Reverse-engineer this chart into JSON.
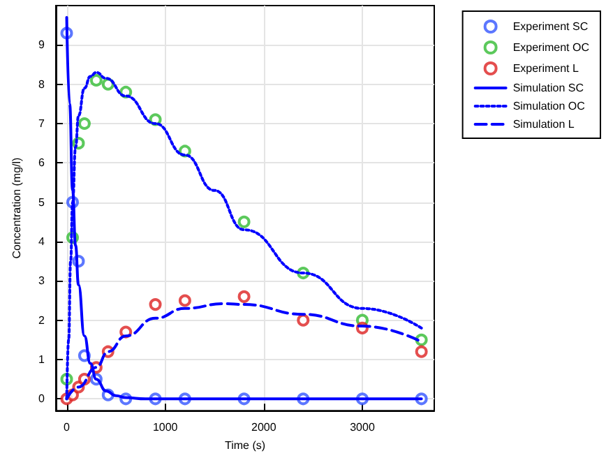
{
  "chart_data": {
    "type": "line",
    "xlabel": "Time (s)",
    "ylabel": "Concentration (mg/l)",
    "xlim": [
      -110,
      3730
    ],
    "ylim": [
      -0.3,
      10
    ],
    "xticks": [
      0,
      1000,
      2000,
      3000
    ],
    "yticks": [
      0,
      1,
      2,
      3,
      4,
      5,
      6,
      7,
      8,
      9
    ],
    "grid": true,
    "legend": "top right",
    "series": [
      {
        "name": "Experiment SC",
        "type": "scatter",
        "marker": "circle",
        "color": "#3355ff",
        "x": [
          0,
          60,
          120,
          180,
          300,
          420,
          600,
          900,
          1200,
          1800,
          2400,
          3000,
          3600
        ],
        "values": [
          9.3,
          5.0,
          3.5,
          1.1,
          0.5,
          0.1,
          0,
          0,
          0,
          0,
          0,
          0,
          0
        ]
      },
      {
        "name": "Experiment OC",
        "type": "scatter",
        "marker": "circle",
        "color": "#33bb33",
        "x": [
          0,
          60,
          120,
          180,
          300,
          420,
          600,
          900,
          1200,
          1800,
          2400,
          3000,
          3600
        ],
        "values": [
          0.5,
          4.1,
          6.5,
          7.0,
          8.1,
          8.0,
          7.8,
          7.1,
          6.3,
          4.5,
          3.2,
          2.0,
          1.5
        ]
      },
      {
        "name": "Experiment L",
        "type": "scatter",
        "marker": "circle",
        "color": "#dd2222",
        "x": [
          0,
          60,
          120,
          180,
          300,
          420,
          600,
          900,
          1200,
          1800,
          2400,
          3000,
          3600
        ],
        "values": [
          0,
          0.1,
          0.3,
          0.5,
          0.8,
          1.2,
          1.7,
          2.4,
          2.5,
          2.6,
          2.0,
          1.8,
          1.2
        ]
      },
      {
        "name": "Simulation SC",
        "type": "line",
        "marker": "none",
        "line_style": "solid",
        "color": "#0000ff",
        "x": [
          0,
          30,
          60,
          90,
          120,
          180,
          240,
          300,
          400,
          500,
          600,
          800,
          1200,
          2000,
          3000,
          3600
        ],
        "values": [
          9.7,
          7.5,
          5.3,
          3.9,
          2.9,
          1.6,
          0.9,
          0.5,
          0.2,
          0.08,
          0.03,
          0,
          0,
          0,
          0,
          0
        ]
      },
      {
        "name": "Simulation OC",
        "type": "line",
        "marker": "none",
        "line_style": "dotted",
        "color": "#0000ff",
        "x": [
          0,
          20,
          40,
          60,
          90,
          120,
          180,
          240,
          300,
          400,
          600,
          900,
          1200,
          1500,
          1800,
          2400,
          3000,
          3600
        ],
        "values": [
          0,
          1.5,
          3.5,
          5.0,
          6.4,
          7.2,
          7.9,
          8.2,
          8.3,
          8.15,
          7.7,
          7.0,
          6.2,
          5.3,
          4.3,
          3.2,
          2.3,
          1.8
        ]
      },
      {
        "name": "Simulation L",
        "type": "line",
        "marker": "none",
        "line_style": "dashed",
        "color": "#0000ff",
        "x": [
          0,
          120,
          300,
          420,
          600,
          900,
          1200,
          1600,
          1800,
          2400,
          3000,
          3600
        ],
        "values": [
          0,
          0.3,
          0.8,
          1.2,
          1.6,
          2.05,
          2.3,
          2.42,
          2.4,
          2.15,
          1.85,
          1.45
        ]
      }
    ]
  }
}
